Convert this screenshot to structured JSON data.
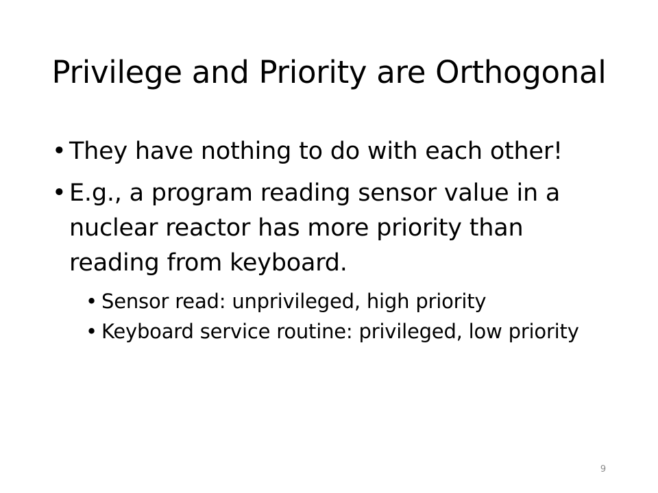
{
  "slide": {
    "title": "Privilege and Priority are Orthogonal",
    "bullets": [
      {
        "text": "They have nothing to do with each other!"
      },
      {
        "text": "E.g., a program reading sensor value in a nuclear reactor has more priority than reading from keyboard."
      }
    ],
    "sub_bullets": [
      {
        "text": "Sensor read: unprivileged, high priority"
      },
      {
        "text": "Keyboard service routine: privileged, low priority"
      }
    ],
    "slide_number": "9"
  }
}
